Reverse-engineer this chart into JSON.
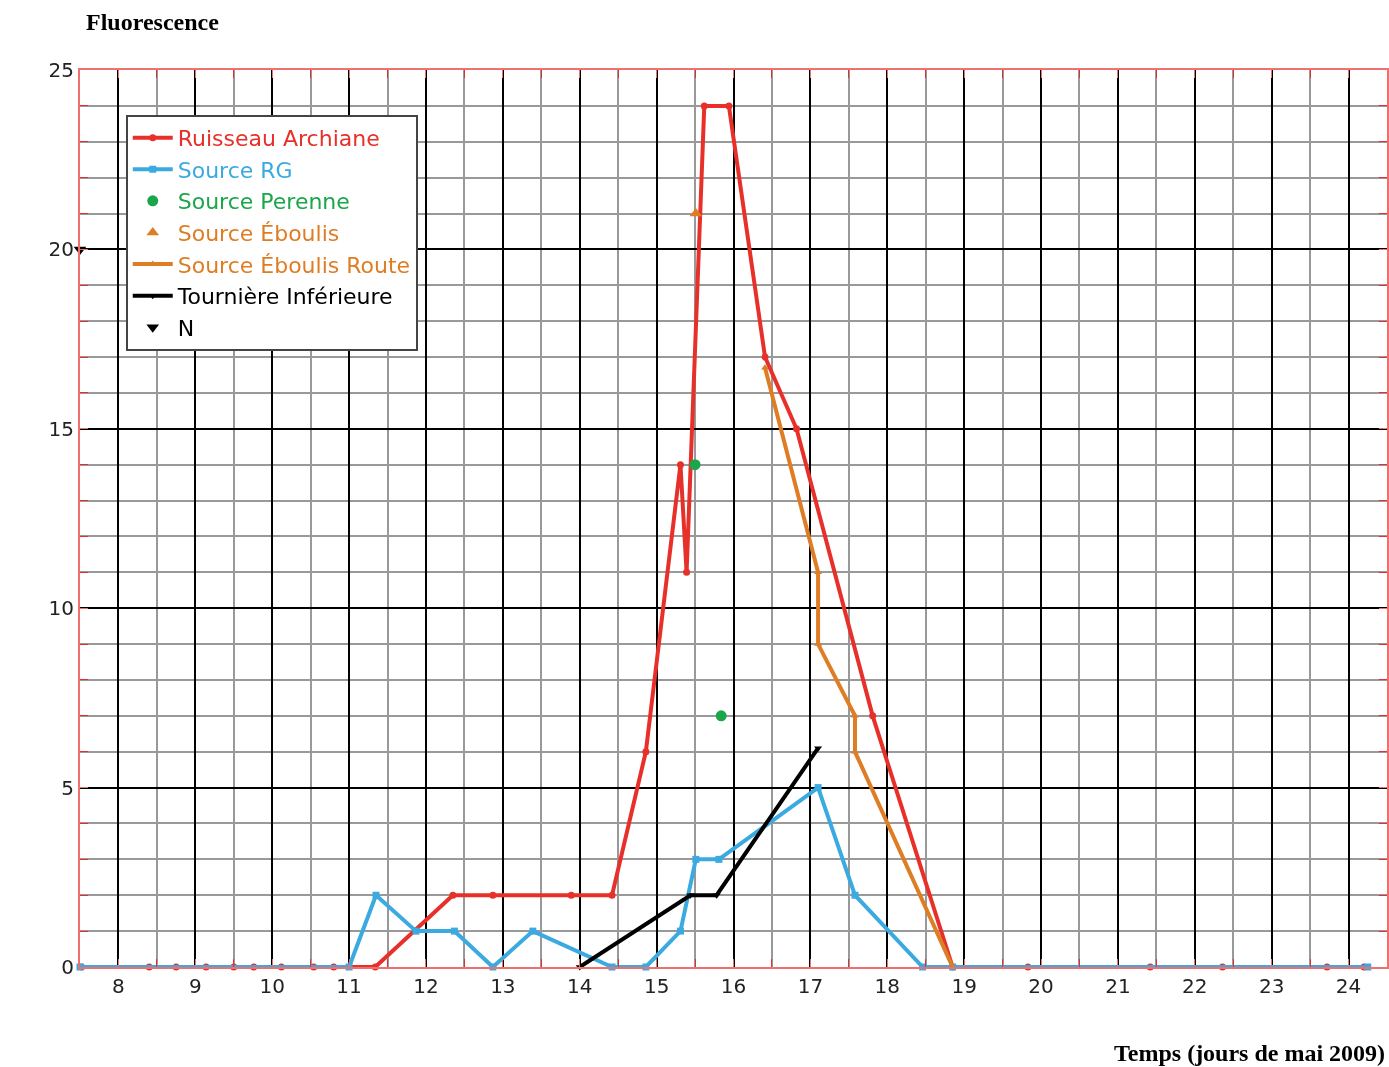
{
  "chart_data": {
    "type": "line",
    "xlabel": "Temps (jours de mai 2009)",
    "ylabel": "Fluorescence",
    "xlim": [
      7.5,
      24.5
    ],
    "xticks": [
      8,
      9,
      10,
      11,
      12,
      13,
      14,
      15,
      16,
      17,
      18,
      19,
      20,
      21,
      22,
      23,
      24
    ],
    "ylim": [
      0,
      25
    ],
    "yticks": [
      0,
      5,
      10,
      15,
      20,
      25
    ],
    "grid": true,
    "legend": "top left",
    "line_style": "solid",
    "series": [
      {
        "name": "Ruisseau Archiane",
        "color": "#e8302a",
        "marker": "circle",
        "x": [
          7.52,
          8.4,
          8.75,
          9.14,
          9.5,
          9.76,
          10.12,
          10.54,
          10.8,
          11.34,
          12.35,
          12.87,
          13.89,
          14.42,
          14.86,
          15.31,
          15.39,
          15.62,
          15.94,
          16.41,
          16.82,
          17.81,
          18.85,
          19.83,
          21.42,
          22.36,
          23.72,
          24.2
        ],
        "values": [
          0,
          0,
          0,
          0,
          0,
          0,
          0,
          0,
          0,
          0,
          2,
          2,
          2,
          2,
          6,
          14,
          11,
          24,
          24,
          17,
          15,
          7,
          0,
          0,
          0,
          0,
          0,
          0
        ]
      },
      {
        "name": "Source RG",
        "color": "#3aaae0",
        "marker": "square",
        "x": [
          7.5,
          11.0,
          11.35,
          11.87,
          12.37,
          12.87,
          13.39,
          14.42,
          14.86,
          15.31,
          15.51,
          15.81,
          17.1,
          17.58,
          18.46,
          18.85,
          24.25
        ],
        "values": [
          0,
          0,
          2,
          1,
          1,
          0,
          1,
          0,
          0,
          1,
          3,
          3,
          5,
          2,
          0,
          0,
          0
        ]
      },
      {
        "name": "Source Perenne",
        "color": "#1aa64a",
        "type": "scatter",
        "marker": "circle",
        "x": [
          15.5,
          15.84
        ],
        "values": [
          14,
          7
        ]
      },
      {
        "name": "Source Éboulis",
        "color": "#de7d24",
        "type": "scatter",
        "marker": "triangle",
        "x": [
          15.51
        ],
        "values": [
          21
        ]
      },
      {
        "name": "Source Éboulis Route",
        "color": "#de7d24",
        "marker": "triangle",
        "x": [
          16.41,
          17.1,
          17.1,
          17.58,
          17.58,
          18.85
        ],
        "values": [
          16.7,
          11,
          9,
          7,
          6,
          0
        ]
      },
      {
        "name": "Tournière Inférieure",
        "color": "#000000",
        "marker": "triangle-down",
        "x": [
          14.0,
          15.44,
          15.78,
          17.1
        ],
        "values": [
          0,
          2,
          2,
          6.1
        ]
      },
      {
        "name": "N",
        "color": "#000000",
        "type": "scatter",
        "marker": "triangle-down",
        "x": [
          7.5
        ],
        "values": [
          20
        ]
      }
    ]
  }
}
